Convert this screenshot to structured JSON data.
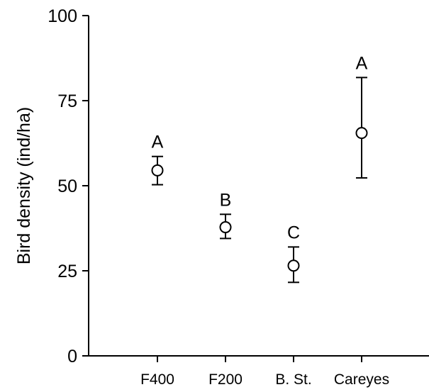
{
  "chart_data": {
    "type": "scatter",
    "title": "",
    "xlabel": "",
    "ylabel": "Bird density (ind/ha)",
    "ylim": [
      0,
      100
    ],
    "yticks": [
      0,
      25,
      50,
      75,
      100
    ],
    "categories": [
      "F400",
      "F200",
      "B. St.",
      "Careyes"
    ],
    "values": [
      54.5,
      37.8,
      26.5,
      65.5
    ],
    "error_low": [
      50.3,
      34.5,
      21.6,
      52.3
    ],
    "error_high": [
      58.6,
      41.6,
      32.0,
      81.8
    ],
    "annotations": [
      "A",
      "B",
      "C",
      "A"
    ],
    "grid": false,
    "marker": "open-circle",
    "colors": {
      "axis": "#000000",
      "marker_fill": "#ffffff",
      "marker_stroke": "#000000"
    }
  }
}
